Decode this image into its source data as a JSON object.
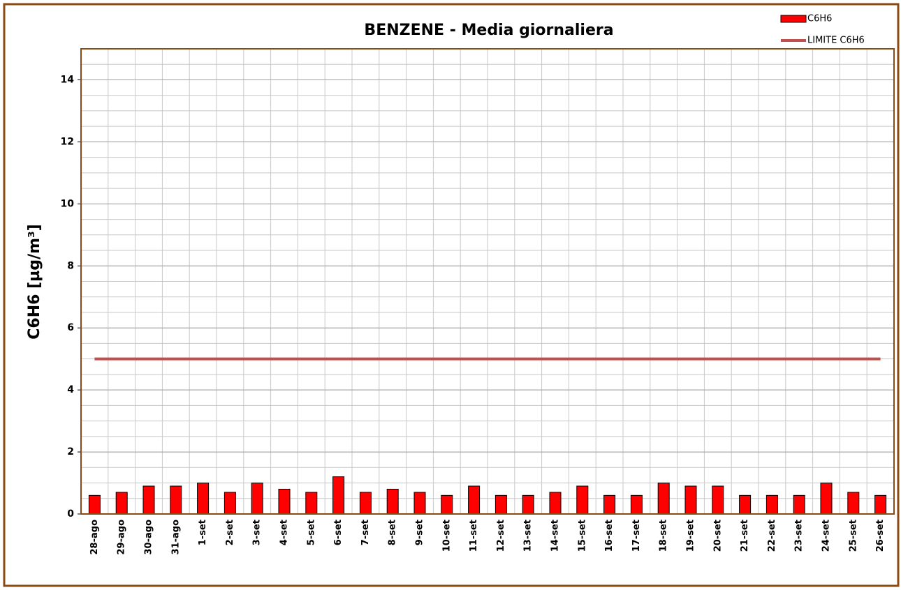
{
  "chart_data": {
    "type": "bar",
    "title": "BENZENE - Media giornaliera",
    "y_label": "C6H6 [µg/m³]",
    "categories": [
      "28-ago",
      "29-ago",
      "30-ago",
      "31-ago",
      "1-set",
      "2-set",
      "3-set",
      "4-set",
      "5-set",
      "6-set",
      "7-set",
      "8-set",
      "9-set",
      "10-set",
      "11-set",
      "12-set",
      "13-set",
      "14-set",
      "15-set",
      "16-set",
      "17-set",
      "18-set",
      "19-set",
      "20-set",
      "21-set",
      "22-set",
      "23-set",
      "24-set",
      "25-set",
      "26-set"
    ],
    "series": [
      {
        "name": "C6H6",
        "type": "bar",
        "color": "#ff0000",
        "values": [
          0.6,
          0.7,
          0.9,
          0.9,
          1.0,
          0.7,
          1.0,
          0.8,
          0.7,
          1.2,
          0.7,
          0.8,
          0.7,
          0.6,
          0.9,
          0.6,
          0.6,
          0.7,
          0.9,
          0.6,
          0.6,
          1.0,
          0.9,
          0.9,
          0.6,
          0.6,
          0.6,
          1.0,
          0.7,
          0.6
        ]
      },
      {
        "name": "LIMITE C6H6",
        "type": "line",
        "color": "#c0504d",
        "values": [
          5,
          5,
          5,
          5,
          5,
          5,
          5,
          5,
          5,
          5,
          5,
          5,
          5,
          5,
          5,
          5,
          5,
          5,
          5,
          5,
          5,
          5,
          5,
          5,
          5,
          5,
          5,
          5,
          5,
          5
        ]
      }
    ],
    "ylim": [
      0,
      15
    ],
    "yticks": [
      0,
      2,
      4,
      6,
      8,
      10,
      12,
      14
    ],
    "grid": true,
    "minor_grid_step": 0.5,
    "legend": "top-right"
  }
}
